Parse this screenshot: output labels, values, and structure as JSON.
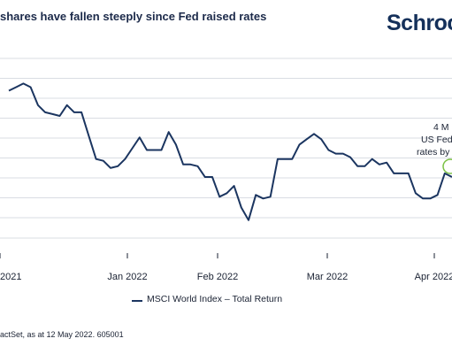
{
  "header": {
    "title": "shares have fallen steeply since Fed raised rates",
    "logo_text": "Schroc"
  },
  "chart_data": {
    "type": "line",
    "title": "shares have fallen steeply since Fed raised rates",
    "xlabel": "",
    "ylabel": "",
    "x_tick_labels": [
      "2021",
      "Jan 2022",
      "Feb 2022",
      "Mar 2022",
      "Apr 2022"
    ],
    "grid": true,
    "ylim": [
      0,
      100
    ],
    "series": [
      {
        "name": "MSCI World Index – Total Return",
        "color": "#1b3560",
        "values": [
          82,
          84,
          86,
          84,
          74,
          70,
          69,
          68,
          74,
          70,
          70,
          57,
          44,
          43,
          39,
          40,
          44,
          50,
          56,
          49,
          49,
          49,
          59,
          52,
          41,
          41,
          40,
          34,
          34,
          23,
          25,
          29,
          17,
          10,
          24,
          22,
          23,
          44,
          44,
          44,
          52,
          55,
          58,
          55,
          49,
          47,
          47,
          45,
          40,
          40,
          44,
          41,
          42,
          36,
          36,
          36,
          25,
          22,
          22,
          24,
          36,
          34
        ]
      }
    ],
    "annotations": [
      {
        "lines": [
          "4 M",
          "US Fed",
          "rates by"
        ],
        "marker_color": "#7ac143"
      }
    ]
  },
  "legend": {
    "items": [
      {
        "label": "MSCI World Index – Total Return",
        "color": "#1b3560"
      }
    ]
  },
  "source": {
    "text": "actSet, as at 12 May 2022. 605001"
  }
}
